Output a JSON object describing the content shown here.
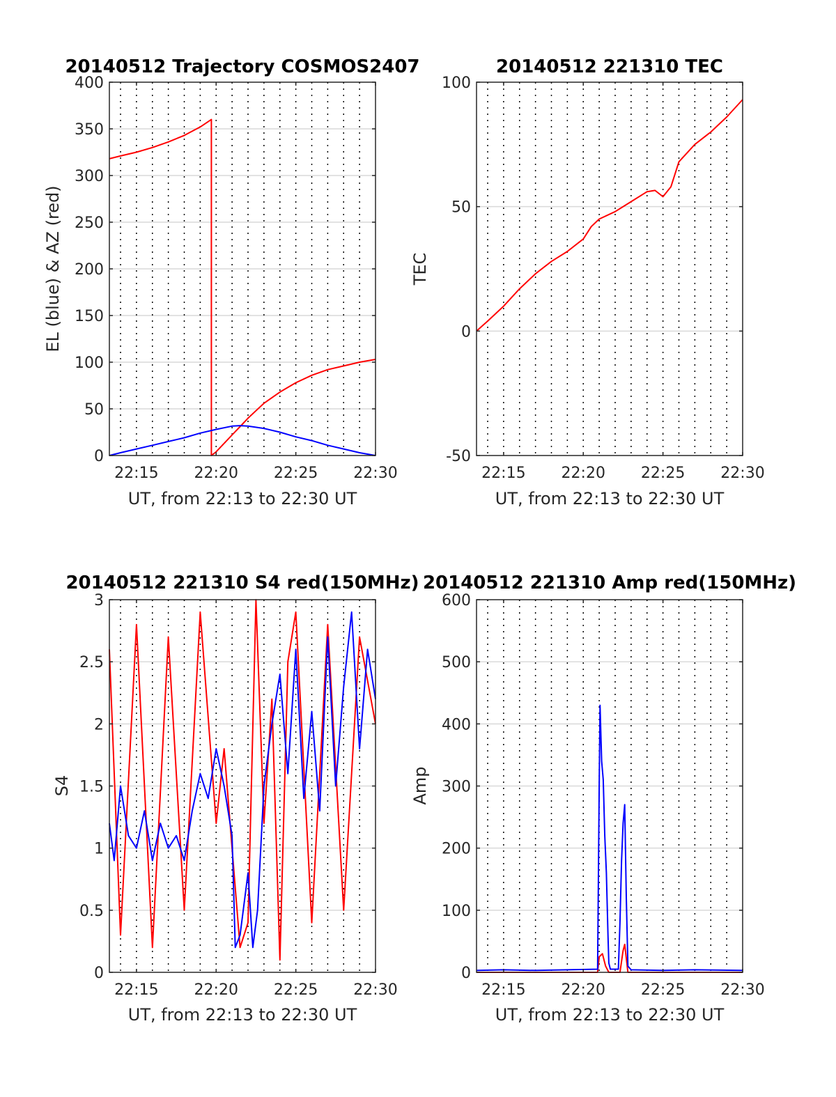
{
  "chart_data": [
    {
      "type": "line",
      "title": "20140512 Trajectory COSMOS2407",
      "xlabel": "UT, from 22:13 to 22:30 UT",
      "ylabel": "EL (blue) & AZ (red)",
      "xlim": [
        13.3,
        30
      ],
      "ylim": [
        0,
        400
      ],
      "xticks": [
        15,
        20,
        25,
        30
      ],
      "xtick_labels": [
        "22:15",
        "22:20",
        "22:25",
        "22:30"
      ],
      "yticks": [
        0,
        50,
        100,
        150,
        200,
        250,
        300,
        350,
        400
      ],
      "ytick_labels": [
        "0",
        "50",
        "100",
        "150",
        "200",
        "250",
        "300",
        "350",
        "400"
      ],
      "grid": true,
      "series": [
        {
          "color": "#ff0000",
          "x": [
            13.3,
            14,
            15,
            16,
            17,
            18,
            19,
            19.7,
            19.701,
            20,
            20.5,
            21,
            21.5,
            22,
            22.5,
            23,
            24,
            25,
            26,
            27,
            28,
            29,
            30
          ],
          "y": [
            318,
            321,
            325,
            330,
            336,
            343,
            352,
            360,
            0,
            4,
            13,
            22,
            31,
            40,
            48,
            56,
            68,
            78,
            86,
            92,
            96,
            100,
            103
          ]
        },
        {
          "color": "#0000ff",
          "x": [
            13.3,
            14,
            15,
            16,
            17,
            18,
            19,
            20,
            21,
            21.5,
            22,
            23,
            24,
            25,
            26,
            27,
            28,
            29,
            30
          ],
          "y": [
            0,
            3,
            7,
            11,
            15,
            19,
            24,
            28,
            31.5,
            32,
            31.5,
            29,
            25,
            20,
            16,
            11,
            7,
            3,
            0
          ]
        }
      ]
    },
    {
      "type": "line",
      "title": "20140512 221310 TEC",
      "xlabel": "UT, from 22:13 to 22:30 UT",
      "ylabel": "TEC",
      "xlim": [
        13.3,
        30
      ],
      "ylim": [
        -50,
        100
      ],
      "xticks": [
        15,
        20,
        25,
        30
      ],
      "xtick_labels": [
        "22:15",
        "22:20",
        "22:25",
        "22:30"
      ],
      "yticks": [
        -50,
        0,
        50,
        100
      ],
      "ytick_labels": [
        "-50",
        "0",
        "50",
        "100"
      ],
      "grid": true,
      "series": [
        {
          "color": "#ff0000",
          "x": [
            13.3,
            14,
            15,
            16,
            17,
            18,
            19,
            20,
            20.5,
            21,
            22,
            23,
            24,
            24.5,
            25,
            25.5,
            26,
            27,
            28,
            29,
            30
          ],
          "y": [
            0,
            4,
            10,
            17,
            23,
            28,
            32,
            37,
            42,
            45,
            48,
            52,
            56,
            56.5,
            54,
            58,
            68,
            75,
            80,
            86,
            93
          ]
        }
      ]
    },
    {
      "type": "line",
      "title": "20140512 221310 S4 red(150MHz)",
      "xlabel": "UT, from 22:13 to 22:30 UT",
      "ylabel": "S4",
      "xlim": [
        13.3,
        30
      ],
      "ylim": [
        0,
        3
      ],
      "xticks": [
        15,
        20,
        25,
        30
      ],
      "xtick_labels": [
        "22:15",
        "22:20",
        "22:25",
        "22:30"
      ],
      "yticks": [
        0,
        0.5,
        1,
        1.5,
        2,
        2.5,
        3
      ],
      "ytick_labels": [
        "0",
        "0.5",
        "1",
        "1.5",
        "2",
        "2.5",
        "3"
      ],
      "grid": true,
      "series": [
        {
          "color": "#ff0000",
          "x": [
            13.3,
            14,
            15,
            16,
            17,
            18,
            19,
            20,
            20.5,
            21,
            21.5,
            22,
            22.5,
            23,
            23.5,
            24,
            24.5,
            25,
            26,
            27,
            28,
            29,
            30
          ],
          "y": [
            2.6,
            0.3,
            2.8,
            0.2,
            2.7,
            0.5,
            2.9,
            1.2,
            1.8,
            1.0,
            0.2,
            0.4,
            3.0,
            1.2,
            2.2,
            0.1,
            2.5,
            2.9,
            0.4,
            2.8,
            0.5,
            2.7,
            2.0
          ]
        },
        {
          "color": "#0000ff",
          "x": [
            13.3,
            13.6,
            14,
            14.5,
            15,
            15.5,
            16,
            16.5,
            17,
            17.5,
            18,
            18.5,
            19,
            19.5,
            20,
            20.5,
            21,
            21.2,
            21.5,
            22,
            22.3,
            22.6,
            23,
            23.5,
            24,
            24.5,
            25,
            25.5,
            26,
            26.5,
            27,
            27.5,
            28,
            28.5,
            29,
            29.5,
            30
          ],
          "y": [
            1.2,
            0.9,
            1.5,
            1.1,
            1.0,
            1.3,
            0.9,
            1.2,
            1.0,
            1.1,
            0.9,
            1.3,
            1.6,
            1.4,
            1.8,
            1.5,
            1.1,
            0.2,
            0.3,
            0.8,
            0.2,
            0.5,
            1.5,
            2.0,
            2.4,
            1.6,
            2.6,
            1.4,
            2.1,
            1.3,
            2.7,
            1.5,
            2.3,
            2.9,
            1.8,
            2.6,
            2.2
          ]
        }
      ]
    },
    {
      "type": "line",
      "title": "20140512 221310 Amp red(150MHz)",
      "xlabel": "UT, from 22:13 to 22:30 UT",
      "ylabel": "Amp",
      "xlim": [
        13.3,
        30
      ],
      "ylim": [
        0,
        600
      ],
      "xticks": [
        15,
        20,
        25,
        30
      ],
      "xtick_labels": [
        "22:15",
        "22:20",
        "22:25",
        "22:30"
      ],
      "yticks": [
        0,
        100,
        200,
        300,
        400,
        500,
        600
      ],
      "ytick_labels": [
        "0",
        "100",
        "200",
        "300",
        "400",
        "500",
        "600"
      ],
      "grid": true,
      "series": [
        {
          "color": "#ff0000",
          "x": [
            13.3,
            20.9,
            21.0,
            21.2,
            21.4,
            21.6,
            22.3,
            22.5,
            22.6,
            22.8,
            30
          ],
          "y": [
            0,
            0,
            25,
            30,
            10,
            0,
            0,
            35,
            45,
            0,
            0
          ]
        },
        {
          "color": "#0000ff",
          "x": [
            13.3,
            15,
            17,
            19,
            20.9,
            21.0,
            21.05,
            21.15,
            21.25,
            21.35,
            21.45,
            21.55,
            21.6,
            21.7,
            22.2,
            22.3,
            22.4,
            22.5,
            22.6,
            22.7,
            22.8,
            23,
            25,
            27,
            30
          ],
          "y": [
            3,
            4,
            3,
            4,
            5,
            300,
            430,
            340,
            310,
            220,
            160,
            60,
            15,
            5,
            5,
            80,
            180,
            240,
            270,
            120,
            10,
            4,
            3,
            4,
            3
          ]
        }
      ]
    }
  ]
}
